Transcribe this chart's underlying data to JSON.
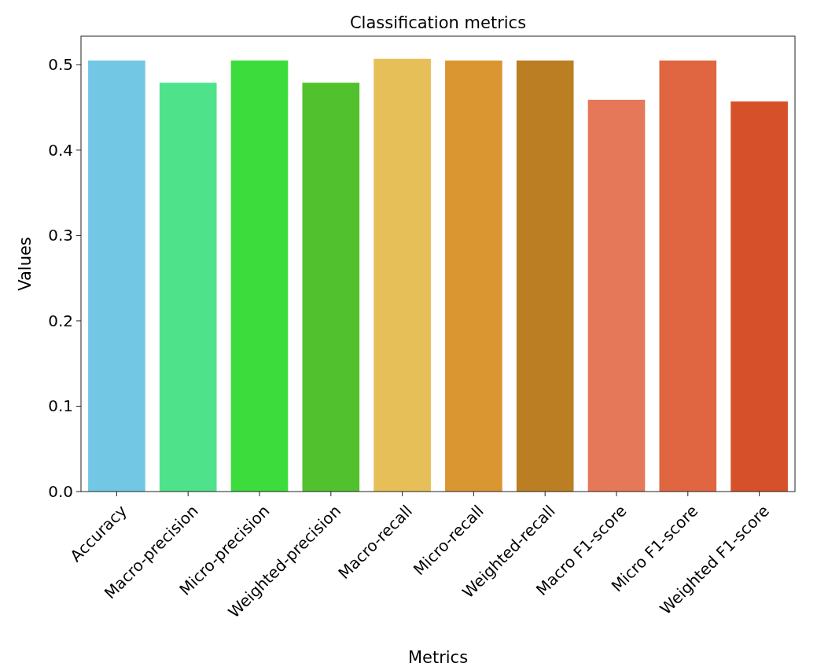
{
  "chart_data": {
    "type": "bar",
    "title": "Classification metrics",
    "xlabel": "Metrics",
    "ylabel": "Values",
    "categories": [
      "Accuracy",
      "Macro-precision",
      "Micro-precision",
      "Weighted-precision",
      "Macro-recall",
      "Micro-recall",
      "Weighted-recall",
      "Macro F1-score",
      "Micro F1-score",
      "Weighted F1-score"
    ],
    "values": [
      0.505,
      0.479,
      0.505,
      0.479,
      0.507,
      0.505,
      0.505,
      0.459,
      0.505,
      0.457
    ],
    "colors": [
      "#72c7e5",
      "#4ee38a",
      "#3cdc3c",
      "#52c12e",
      "#e6bf58",
      "#da9630",
      "#bc7e22",
      "#e57858",
      "#e06642",
      "#d65129"
    ],
    "ylim": [
      0,
      0.5335
    ],
    "yticks": [
      {
        "value": 0,
        "label": "0.0"
      },
      0.1,
      0.2,
      0.3,
      0.4,
      0.5
    ],
    "grid": false
  }
}
